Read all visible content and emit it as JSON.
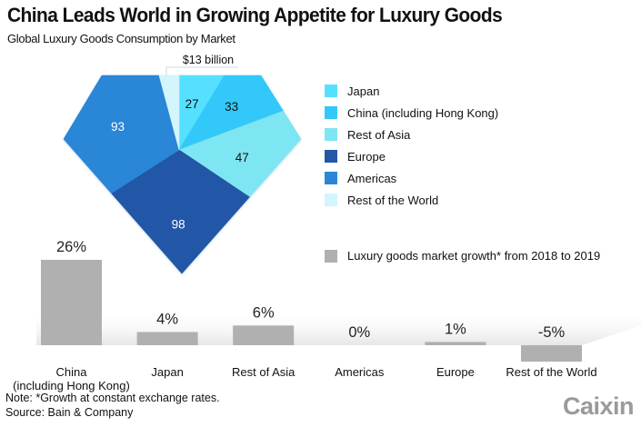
{
  "header": {
    "title": "China Leads World in Growing Appetite for Luxury Goods",
    "subtitle": "Global Luxury Goods Consumption by Market"
  },
  "chart_data": [
    {
      "type": "pie",
      "title": "Global Luxury Goods Consumption by Market",
      "unit": "billion USD",
      "shape": "diamond (gem-shaped pie)",
      "slices": [
        {
          "name": "Japan",
          "value": 27,
          "label": "27",
          "color": "#55E0FF",
          "label_color": "#111111"
        },
        {
          "name": "China (including Hong Kong)",
          "value": 33,
          "label": "33",
          "color": "#33C8FA",
          "label_color": "#111111"
        },
        {
          "name": "Rest of Asia",
          "value": 47,
          "label": "47",
          "color": "#7EE6F2",
          "label_color": "#111111"
        },
        {
          "name": "Europe",
          "value": 98,
          "label": "98",
          "color": "#2456A6",
          "label_color": "#ffffff"
        },
        {
          "name": "Americas",
          "value": 93,
          "label": "93",
          "color": "#2C86D6",
          "label_color": "#ffffff"
        },
        {
          "name": "Rest of the World",
          "value": 13,
          "label": "",
          "color": "#D2F6FC",
          "label_color": "#111111"
        }
      ],
      "annotations": [
        {
          "target": "Rest of the World",
          "text": "$13 billion"
        }
      ],
      "legend": {
        "placement": "right",
        "entries": [
          "Japan",
          "China (including Hong Kong)",
          "Rest of Asia",
          "Europe",
          "Americas",
          "Rest of the World"
        ]
      }
    },
    {
      "type": "bar",
      "title": "",
      "xlabel": "",
      "ylabel": "",
      "unit": "%",
      "categories": [
        "China\n(including Hong Kong)",
        "Japan",
        "Rest of Asia",
        "Americas",
        "Europe",
        "Rest of the World"
      ],
      "category_lines": [
        [
          "China",
          "(including Hong Kong)"
        ],
        [
          "Japan"
        ],
        [
          "Rest of Asia"
        ],
        [
          "Americas"
        ],
        [
          "Europe"
        ],
        [
          "Rest of the World"
        ]
      ],
      "series": [
        {
          "name": "Luxury goods market growth* from 2018 to 2019",
          "values": [
            26,
            4,
            6,
            0,
            1,
            -5
          ],
          "labels": [
            "26%",
            "4%",
            "6%",
            "0%",
            "1%",
            "-5%"
          ],
          "color": "#B0B0B0"
        }
      ],
      "ylim": [
        -5,
        26
      ],
      "grid": false,
      "legend": {
        "placement": "right",
        "entries": [
          "Luxury goods market growth* from 2018 to 2019"
        ]
      }
    }
  ],
  "footer": {
    "note": "Note: *Growth at constant exchange rates.",
    "source": "Source: Bain & Company",
    "logo": "Caixin"
  }
}
